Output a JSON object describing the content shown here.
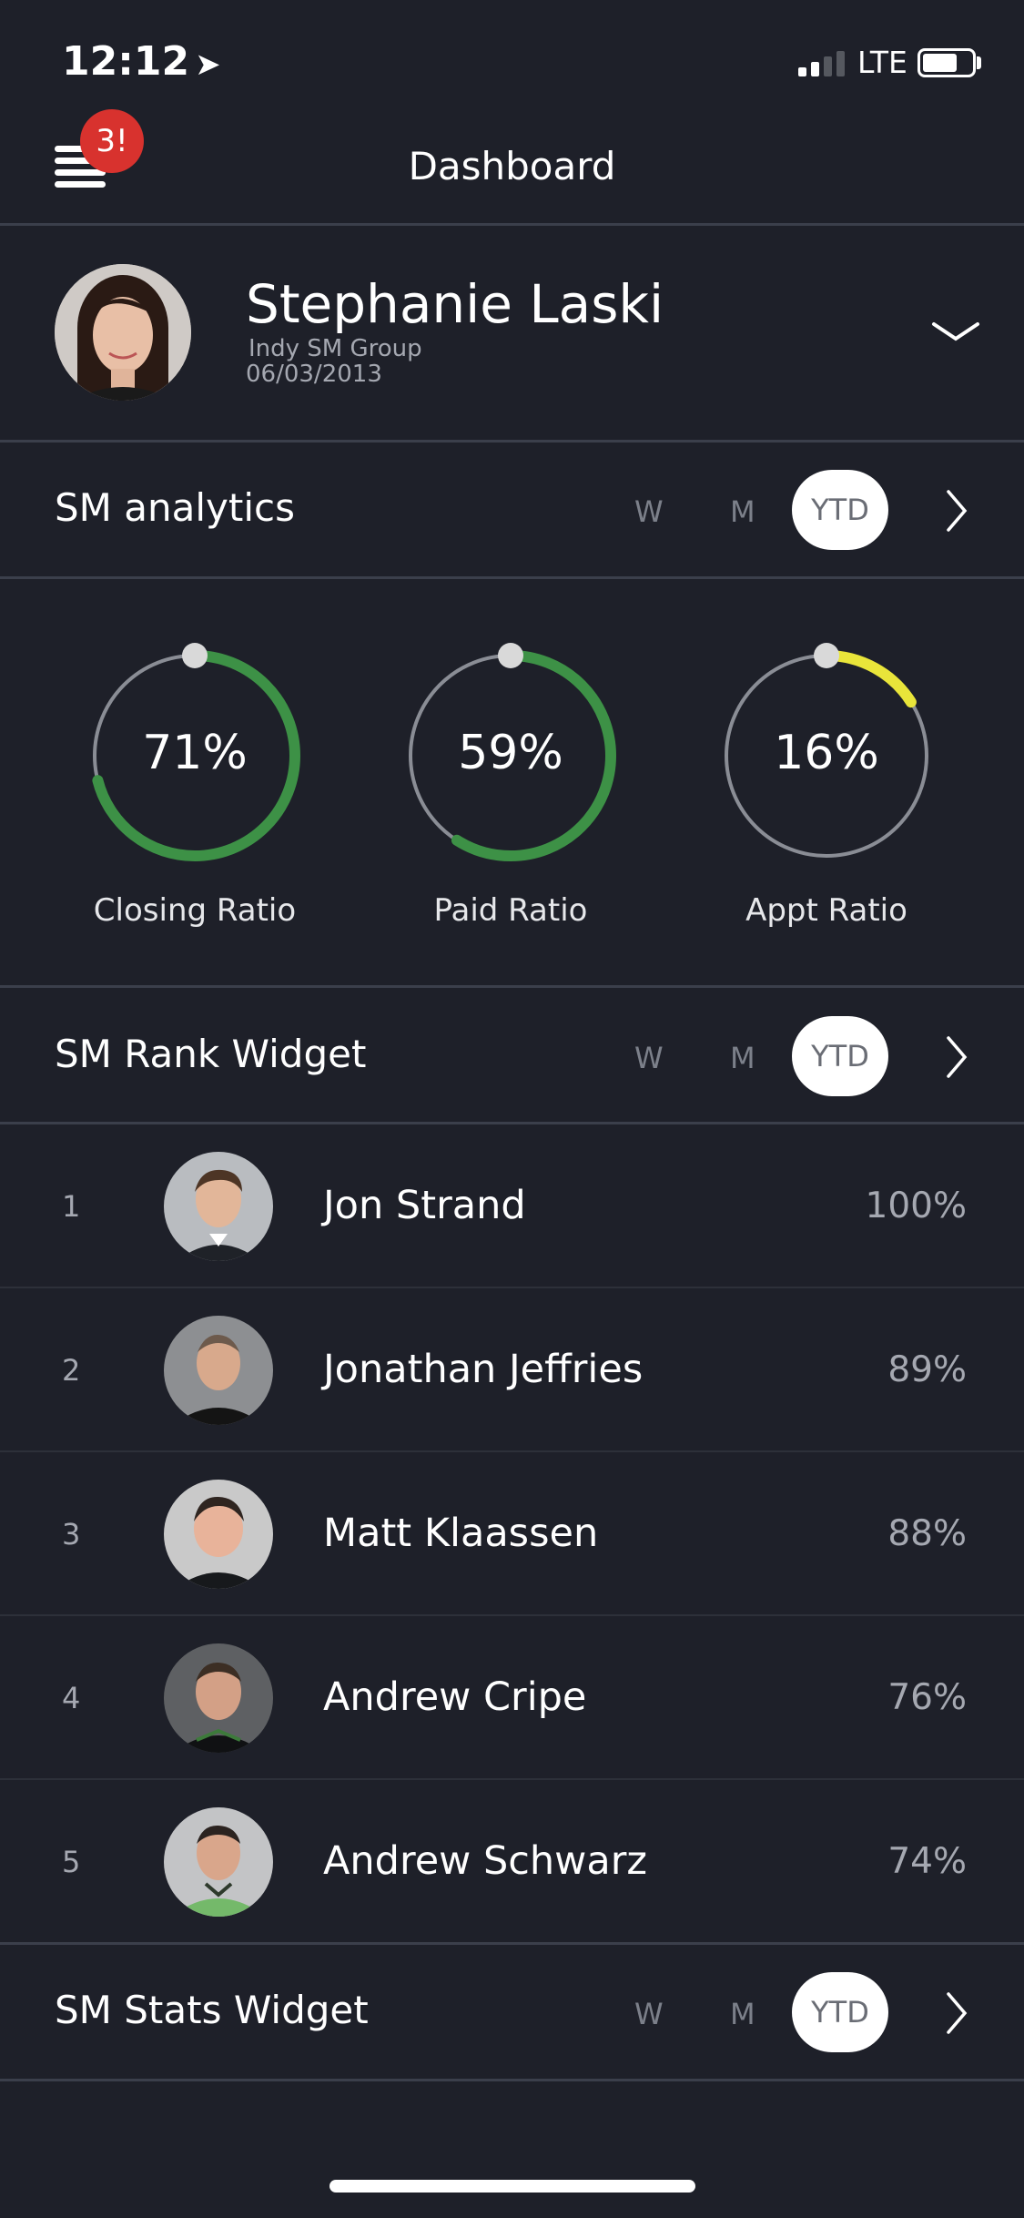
{
  "status_bar": {
    "time": "12:12",
    "network": "LTE"
  },
  "header": {
    "title": "Dashboard",
    "badge": "3!"
  },
  "profile": {
    "name": "Stephanie Laski",
    "group": "Indy SM Group",
    "date": "06/03/2013"
  },
  "analytics": {
    "title": "SM analytics",
    "segments": [
      "W",
      "M",
      "YTD"
    ],
    "selected": "YTD",
    "rings": [
      {
        "value": "71%",
        "label": "Closing Ratio",
        "fraction": 0.71,
        "color": "#3d9146"
      },
      {
        "value": "59%",
        "label": "Paid Ratio",
        "fraction": 0.59,
        "color": "#3d9146"
      },
      {
        "value": "16%",
        "label": "Appt Ratio",
        "fraction": 0.16,
        "color": "#e9e53a"
      }
    ]
  },
  "rank_widget": {
    "title": "SM Rank Widget",
    "segments": [
      "W",
      "M",
      "YTD"
    ],
    "selected": "YTD",
    "rows": [
      {
        "rank": "1",
        "name": "Jon Strand",
        "pct": "100%"
      },
      {
        "rank": "2",
        "name": "Jonathan Jeffries",
        "pct": "89%"
      },
      {
        "rank": "3",
        "name": "Matt Klaassen",
        "pct": "88%"
      },
      {
        "rank": "4",
        "name": "Andrew Cripe",
        "pct": "76%"
      },
      {
        "rank": "5",
        "name": "Andrew Schwarz",
        "pct": "74%"
      }
    ]
  },
  "stats_widget": {
    "title": "SM Stats Widget",
    "segments": [
      "W",
      "M",
      "YTD"
    ],
    "selected": "YTD"
  },
  "colors": {
    "background": "#1e2029",
    "divider": "#3b3f4b",
    "badge": "#d8322e",
    "ring_track": "#8a8d95"
  }
}
